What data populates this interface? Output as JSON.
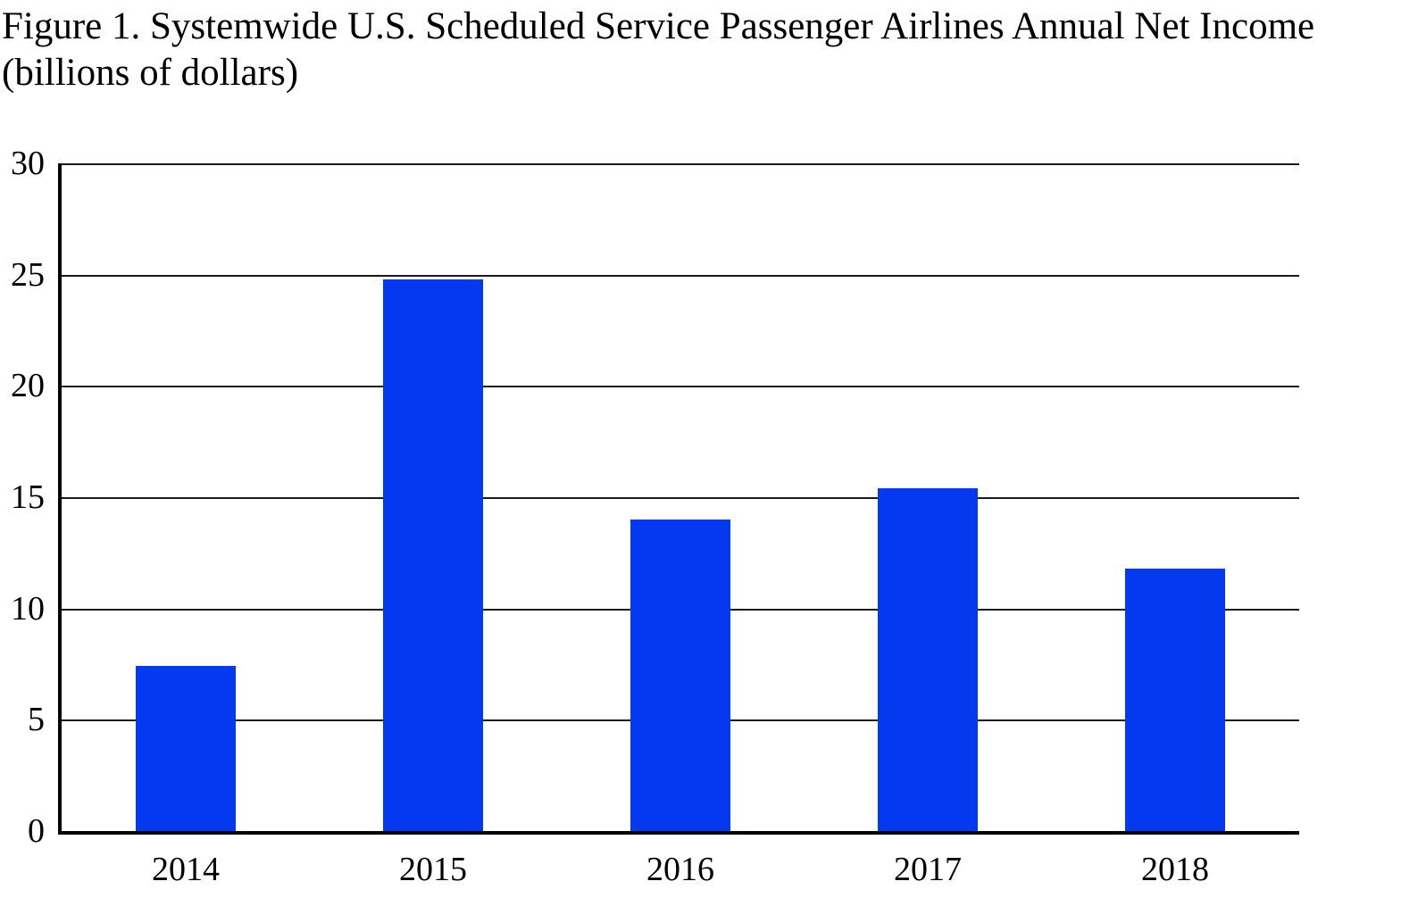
{
  "title": {
    "line1": "Figure 1. Systemwide U.S. Scheduled Service Passenger Airlines Annual Net Income",
    "line2": "(billions of dollars)"
  },
  "chart_data": {
    "type": "bar",
    "title": "Figure 1. Systemwide U.S. Scheduled Service Passenger Airlines Annual Net Income (billions of dollars)",
    "categories": [
      "2014",
      "2015",
      "2016",
      "2017",
      "2018"
    ],
    "values": [
      7.4,
      24.8,
      14.0,
      15.4,
      11.8
    ],
    "series": [
      {
        "name": "Annual Net Income (billions of dollars)",
        "values": [
          7.4,
          24.8,
          14.0,
          15.4,
          11.8
        ]
      }
    ],
    "xlabel": "",
    "ylabel": "",
    "ylim": [
      0,
      30
    ],
    "yticks": [
      0,
      5,
      10,
      15,
      20,
      25,
      30
    ],
    "ytick_labels": [
      "0",
      "5",
      "10",
      "15",
      "20",
      "25",
      "30"
    ],
    "grid": true,
    "gridline_orientation": "horizontal",
    "legend": false,
    "bar_color": "#0539ef",
    "axis_color": "#000000",
    "gridline_color": "#1a1a1a",
    "background_color": "#ffffff"
  },
  "colors": {
    "bar": "#0539ef",
    "axis": "#000000",
    "grid": "#1a1a1a",
    "background": "#ffffff",
    "text": "#000000"
  }
}
